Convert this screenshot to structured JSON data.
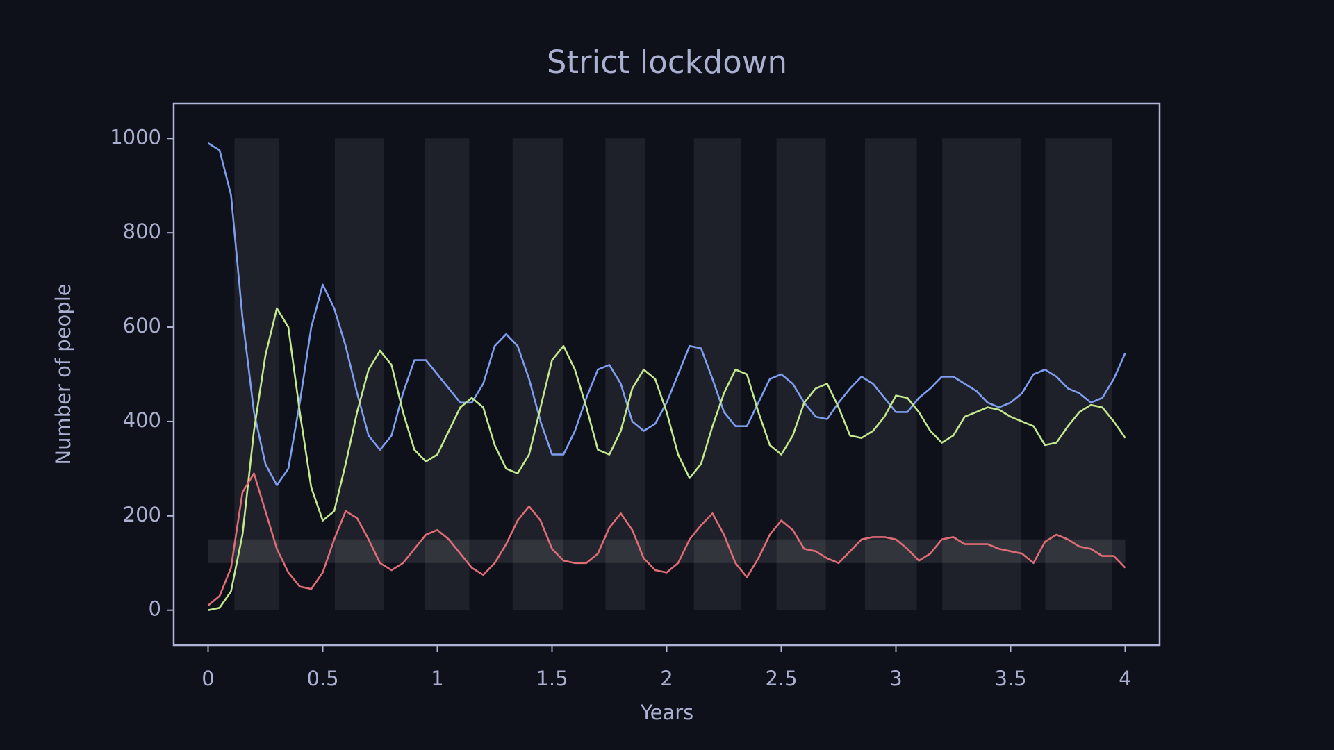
{
  "chart_data": {
    "type": "line",
    "title": "Strict lockdown",
    "xlabel": "Years",
    "ylabel": "Number of people",
    "x": [
      0,
      0.05,
      0.1,
      0.15,
      0.2,
      0.25,
      0.3,
      0.35,
      0.4,
      0.45,
      0.5,
      0.55,
      0.6,
      0.65,
      0.7,
      0.75,
      0.8,
      0.85,
      0.9,
      0.95,
      1,
      1.05,
      1.1,
      1.15,
      1.2,
      1.25,
      1.3,
      1.35,
      1.4,
      1.45,
      1.5,
      1.55,
      1.6,
      1.65,
      1.7,
      1.75,
      1.8,
      1.85,
      1.9,
      1.95,
      2,
      2.05,
      2.1,
      2.15,
      2.2,
      2.25,
      2.3,
      2.35,
      2.4,
      2.45,
      2.5,
      2.55,
      2.6,
      2.65,
      2.7,
      2.75,
      2.8,
      2.85,
      2.9,
      2.95,
      3,
      3.05,
      3.1,
      3.15,
      3.2,
      3.25,
      3.3,
      3.35,
      3.4,
      3.45,
      3.5,
      3.55,
      3.6,
      3.65,
      3.7,
      3.75,
      3.8,
      3.85,
      3.9,
      3.95,
      4
    ],
    "series": [
      {
        "color": "#7f9ef0",
        "values": [
          990,
          975,
          880,
          620,
          420,
          310,
          265,
          300,
          440,
          600,
          690,
          640,
          560,
          460,
          370,
          340,
          370,
          460,
          530,
          530,
          500,
          470,
          440,
          440,
          480,
          560,
          585,
          560,
          490,
          400,
          330,
          330,
          380,
          450,
          510,
          520,
          480,
          400,
          380,
          395,
          440,
          500,
          560,
          555,
          490,
          420,
          390,
          390,
          440,
          490,
          500,
          480,
          440,
          410,
          405,
          440,
          470,
          495,
          480,
          450,
          420,
          420,
          450,
          470,
          495,
          495,
          480,
          465,
          440,
          430,
          440,
          460,
          500,
          510,
          495,
          470,
          460,
          440,
          450,
          490,
          545
        ]
      },
      {
        "color": "#c3e88d",
        "values": [
          0,
          5,
          40,
          160,
          380,
          540,
          640,
          600,
          420,
          260,
          190,
          210,
          310,
          420,
          510,
          550,
          520,
          420,
          340,
          315,
          330,
          380,
          430,
          450,
          430,
          350,
          300,
          290,
          330,
          430,
          530,
          560,
          510,
          430,
          340,
          330,
          380,
          470,
          510,
          490,
          420,
          330,
          280,
          310,
          390,
          460,
          510,
          500,
          420,
          350,
          330,
          370,
          440,
          470,
          480,
          430,
          370,
          365,
          380,
          410,
          455,
          450,
          420,
          380,
          355,
          370,
          410,
          420,
          430,
          425,
          410,
          400,
          390,
          350,
          355,
          390,
          420,
          435,
          430,
          400,
          365
        ]
      },
      {
        "color": "#e06c75",
        "values": [
          10,
          30,
          90,
          250,
          290,
          210,
          130,
          80,
          50,
          45,
          80,
          150,
          210,
          195,
          150,
          100,
          85,
          100,
          130,
          160,
          170,
          150,
          120,
          90,
          75,
          100,
          140,
          190,
          220,
          190,
          130,
          105,
          100,
          100,
          120,
          175,
          205,
          170,
          110,
          85,
          80,
          100,
          150,
          180,
          205,
          160,
          100,
          70,
          110,
          160,
          190,
          170,
          130,
          125,
          110,
          100,
          125,
          150,
          155,
          155,
          150,
          130,
          105,
          120,
          150,
          155,
          140,
          140,
          140,
          130,
          125,
          120,
          100,
          145,
          160,
          150,
          135,
          130,
          115,
          115,
          90
        ]
      }
    ],
    "spans": [
      [
        0.115,
        0.308
      ],
      [
        0.553,
        0.768
      ],
      [
        0.946,
        1.139
      ],
      [
        1.328,
        1.547
      ],
      [
        1.733,
        1.907
      ],
      [
        2.119,
        2.323
      ],
      [
        2.479,
        2.694
      ],
      [
        2.865,
        3.091
      ],
      [
        3.202,
        3.547
      ],
      [
        3.651,
        3.944
      ]
    ],
    "span_ylim": [
      0,
      1000
    ],
    "hband": [
      100,
      150
    ],
    "xlim": [
      -0.15,
      4.15
    ],
    "ylim": [
      -74,
      1074
    ],
    "xticks": [
      0,
      0.5,
      1,
      1.5,
      2,
      2.5,
      3,
      3.5,
      4
    ],
    "yticks": [
      0,
      200,
      400,
      600,
      800,
      1000
    ],
    "grid": false
  }
}
